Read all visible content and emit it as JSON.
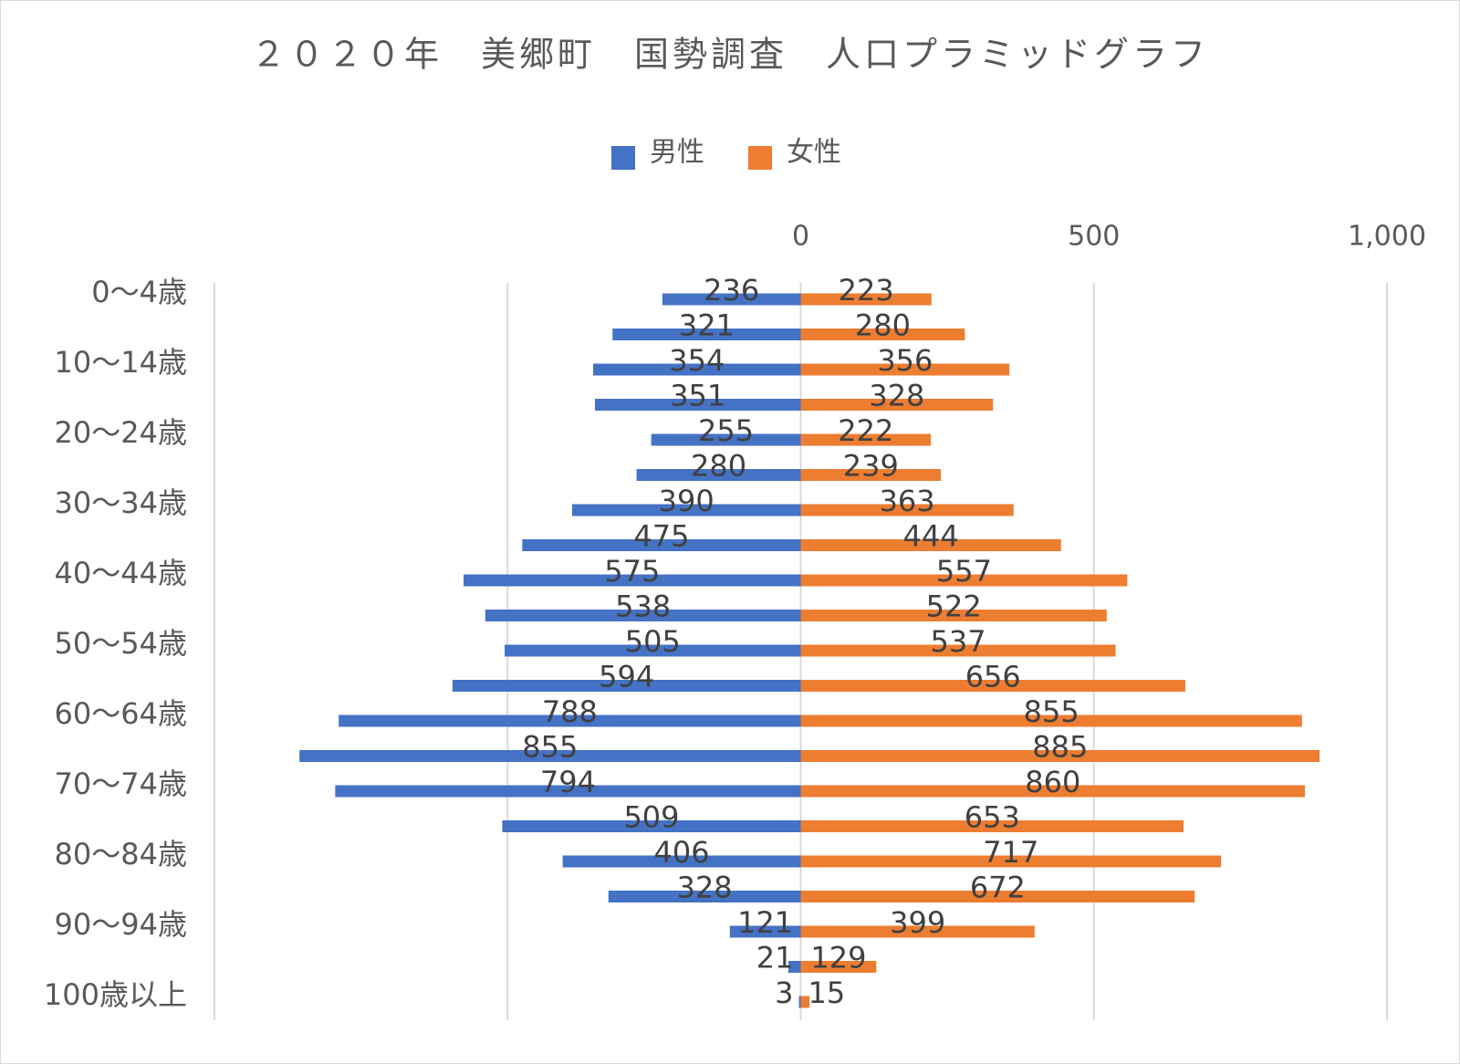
{
  "chart_data": {
    "type": "pyramid",
    "title": "２０２０年　美郷町　国勢調査　人口プラミッドグラフ",
    "categories": [
      "0～4歳",
      null,
      "10～14歳",
      null,
      "20～24歳",
      null,
      "30～34歳",
      null,
      "40～44歳",
      null,
      "50～54歳",
      null,
      "60～64歳",
      null,
      "70～74歳",
      null,
      "80～84歳",
      null,
      "90～94歳",
      null,
      "100歳以上"
    ],
    "series": [
      {
        "name": "男性",
        "color": "#4472c4",
        "direction": "left",
        "values": [
          236,
          321,
          354,
          351,
          255,
          280,
          390,
          475,
          575,
          538,
          505,
          594,
          788,
          855,
          794,
          509,
          406,
          328,
          121,
          21,
          3
        ]
      },
      {
        "name": "女性",
        "color": "#ed7d31",
        "direction": "right",
        "values": [
          223,
          280,
          356,
          328,
          222,
          239,
          363,
          444,
          557,
          522,
          537,
          656,
          855,
          885,
          860,
          653,
          717,
          672,
          399,
          129,
          15
        ]
      }
    ],
    "xlim": [
      -1000,
      1000
    ],
    "xticks": [
      0,
      500,
      {
        "value": 1000,
        "label": "1,000"
      }
    ],
    "xgrid": [
      -1000,
      -500,
      0,
      500,
      1000
    ],
    "grid": true,
    "legend": "top"
  }
}
